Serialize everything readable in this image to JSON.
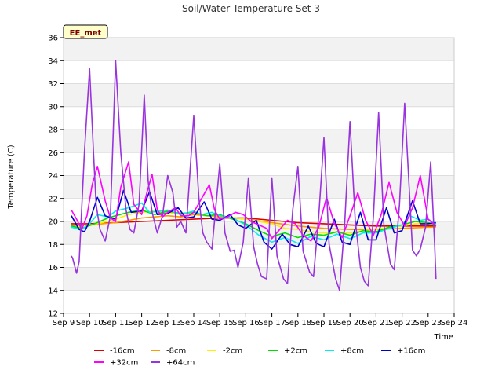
{
  "chart_data": {
    "type": "line",
    "title": "Soil/Water Temperature Set 3",
    "xlabel": "Time",
    "ylabel": "Temperature (C)",
    "badge": "EE_met",
    "x_ticks": [
      "Sep 9",
      "Sep 10",
      "Sep 11",
      "Sep 12",
      "Sep 13",
      "Sep 14",
      "Sep 15",
      "Sep 16",
      "Sep 17",
      "Sep 18",
      "Sep 19",
      "Sep 20",
      "Sep 21",
      "Sep 22",
      "Sep 23",
      "Sep 24"
    ],
    "xlim": [
      9,
      24
    ],
    "ylim": [
      12,
      36
    ],
    "y_ticks": [
      12,
      14,
      16,
      18,
      20,
      22,
      24,
      26,
      28,
      30,
      32,
      34,
      36
    ],
    "grid": "horizontal bands",
    "legend_position": "bottom",
    "series": [
      {
        "name": "-16cm",
        "color": "#dd0000",
        "x": [
          9.3,
          10.0,
          11.0,
          12.0,
          13.0,
          14.0,
          15.0,
          16.0,
          17.0,
          18.0,
          19.0,
          20.0,
          21.0,
          22.0,
          23.0,
          23.3
        ],
        "y": [
          19.8,
          19.8,
          19.9,
          20.0,
          20.1,
          20.2,
          20.3,
          20.3,
          20.1,
          19.9,
          19.8,
          19.7,
          19.6,
          19.6,
          19.6,
          19.6
        ]
      },
      {
        "name": "-8cm",
        "color": "#ff9900",
        "x": [
          9.3,
          10.0,
          11.0,
          12.0,
          12.5,
          13.0,
          13.5,
          14.0,
          14.5,
          15.0,
          15.5,
          16.0,
          17.0,
          18.0,
          19.0,
          20.0,
          21.0,
          22.0,
          23.0,
          23.3
        ],
        "y": [
          19.6,
          19.7,
          19.9,
          20.3,
          20.4,
          20.5,
          20.4,
          20.6,
          20.5,
          20.4,
          20.3,
          20.2,
          19.9,
          19.6,
          19.4,
          19.3,
          19.3,
          19.4,
          19.5,
          19.5
        ]
      },
      {
        "name": "-2cm",
        "color": "#ffee00",
        "x": [
          9.3,
          10.0,
          10.5,
          11.0,
          11.5,
          12.0,
          12.5,
          13.0,
          13.5,
          14.0,
          14.5,
          15.0,
          16.0,
          17.0,
          17.5,
          18.0,
          18.5,
          19.0,
          19.5,
          20.0,
          20.5,
          21.0,
          21.5,
          22.0,
          22.5,
          23.0,
          23.3
        ],
        "y": [
          19.5,
          19.7,
          19.9,
          20.2,
          20.6,
          20.8,
          20.9,
          20.8,
          20.6,
          20.8,
          20.5,
          20.5,
          20.2,
          19.8,
          19.4,
          19.3,
          19.1,
          19.0,
          19.1,
          19.0,
          19.2,
          19.3,
          19.5,
          19.6,
          19.8,
          19.9,
          19.8
        ]
      },
      {
        "name": "+2cm",
        "color": "#00dd00",
        "x": [
          9.3,
          9.7,
          10.2,
          10.7,
          11.0,
          11.5,
          12.0,
          12.5,
          13.0,
          13.5,
          14.0,
          14.5,
          15.0,
          15.5,
          16.0,
          16.5,
          17.0,
          17.5,
          18.0,
          18.5,
          19.0,
          19.5,
          20.0,
          20.5,
          21.0,
          21.5,
          22.0,
          22.5,
          23.0,
          23.3
        ],
        "y": [
          19.6,
          19.4,
          19.8,
          20.3,
          20.5,
          20.8,
          21.0,
          20.6,
          20.9,
          20.7,
          20.8,
          20.5,
          20.6,
          20.2,
          19.8,
          19.2,
          18.7,
          19.0,
          18.6,
          18.9,
          18.8,
          19.1,
          18.8,
          19.2,
          19.1,
          19.5,
          19.7,
          20.0,
          19.9,
          19.7
        ]
      },
      {
        "name": "+8cm",
        "color": "#00eeee",
        "x": [
          9.3,
          9.7,
          10.0,
          10.3,
          10.7,
          11.0,
          11.5,
          12.0,
          12.3,
          12.7,
          13.0,
          13.5,
          14.0,
          14.3,
          14.7,
          15.0,
          15.5,
          16.0,
          16.5,
          17.0,
          17.5,
          18.0,
          18.5,
          19.0,
          19.5,
          20.0,
          20.5,
          21.0,
          21.5,
          22.0,
          22.3,
          22.7,
          23.0,
          23.3
        ],
        "y": [
          19.5,
          19.3,
          19.8,
          20.6,
          20.4,
          20.9,
          21.2,
          21.6,
          20.8,
          20.9,
          21.0,
          20.6,
          20.9,
          20.6,
          20.8,
          20.5,
          20.3,
          19.7,
          18.8,
          18.2,
          18.6,
          18.1,
          18.7,
          18.4,
          18.9,
          18.5,
          19.0,
          19.0,
          19.4,
          19.7,
          20.5,
          20.1,
          20.2,
          19.8
        ]
      },
      {
        "name": "+16cm",
        "color": "#0000cc",
        "x": [
          9.3,
          9.6,
          9.8,
          10.0,
          10.3,
          10.6,
          11.0,
          11.3,
          11.6,
          12.0,
          12.3,
          12.6,
          13.0,
          13.4,
          13.7,
          14.0,
          14.4,
          14.7,
          15.0,
          15.4,
          15.7,
          16.0,
          16.4,
          16.7,
          17.0,
          17.4,
          17.7,
          18.0,
          18.4,
          18.7,
          19.0,
          19.4,
          19.7,
          20.0,
          20.4,
          20.7,
          21.0,
          21.4,
          21.7,
          22.0,
          22.4,
          22.7,
          23.0,
          23.3
        ],
        "y": [
          20.5,
          19.3,
          19.1,
          20.0,
          22.1,
          20.5,
          20.2,
          22.7,
          20.8,
          20.9,
          22.6,
          20.6,
          20.7,
          21.2,
          20.3,
          20.4,
          21.7,
          20.2,
          20.1,
          20.6,
          19.7,
          19.4,
          20.1,
          18.2,
          17.6,
          18.9,
          18.0,
          17.8,
          19.6,
          18.1,
          17.8,
          20.2,
          18.2,
          18.0,
          20.8,
          18.4,
          18.4,
          21.2,
          19.0,
          19.2,
          21.8,
          19.8,
          19.8,
          19.9
        ]
      },
      {
        "name": "+32cm",
        "color": "#ff00ff",
        "x": [
          9.3,
          9.5,
          9.7,
          9.9,
          10.1,
          10.3,
          10.6,
          10.8,
          11.0,
          11.2,
          11.5,
          11.7,
          12.0,
          12.2,
          12.4,
          12.6,
          12.8,
          13.0,
          13.3,
          13.5,
          13.8,
          14.0,
          14.3,
          14.6,
          14.8,
          15.0,
          15.3,
          15.6,
          15.9,
          16.2,
          16.5,
          16.8,
          17.0,
          17.3,
          17.6,
          17.9,
          18.2,
          18.5,
          18.8,
          19.1,
          19.4,
          19.7,
          20.0,
          20.3,
          20.6,
          20.9,
          21.2,
          21.5,
          21.8,
          22.1,
          22.4,
          22.7,
          23.0,
          23.3
        ],
        "y": [
          21.0,
          20.2,
          19.3,
          20.5,
          23.2,
          24.8,
          21.8,
          20.3,
          20.0,
          23.0,
          25.2,
          21.5,
          20.6,
          22.5,
          24.1,
          21.0,
          20.4,
          20.8,
          21.2,
          20.5,
          20.5,
          20.8,
          22.0,
          23.2,
          21.0,
          20.2,
          20.4,
          20.8,
          20.6,
          20.0,
          19.7,
          19.4,
          18.5,
          19.3,
          20.1,
          19.8,
          18.8,
          18.3,
          19.5,
          22.1,
          19.8,
          18.6,
          20.5,
          22.5,
          20.1,
          18.8,
          20.6,
          23.4,
          20.8,
          19.6,
          21.2,
          24.0,
          20.2,
          19.6
        ]
      },
      {
        "name": "+64cm",
        "color": "#9933dd",
        "x": [
          9.3,
          9.35,
          9.5,
          9.6,
          9.8,
          10.0,
          10.15,
          10.25,
          10.4,
          10.6,
          10.8,
          11.0,
          11.2,
          11.4,
          11.55,
          11.7,
          11.9,
          12.1,
          12.25,
          12.4,
          12.6,
          12.8,
          13.0,
          13.2,
          13.35,
          13.5,
          13.7,
          14.0,
          14.2,
          14.35,
          14.5,
          14.7,
          15.0,
          15.2,
          15.4,
          15.55,
          15.7,
          15.9,
          16.1,
          16.3,
          16.45,
          16.6,
          16.8,
          17.0,
          17.2,
          17.45,
          17.6,
          17.8,
          18.0,
          18.2,
          18.45,
          18.6,
          18.8,
          19.0,
          19.2,
          19.45,
          19.6,
          19.8,
          20.0,
          20.2,
          20.4,
          20.55,
          20.7,
          20.9,
          21.1,
          21.3,
          21.55,
          21.7,
          21.9,
          22.1,
          22.4,
          22.55,
          22.7,
          22.9,
          23.1,
          23.25,
          23.3
        ],
        "y": [
          17.0,
          16.8,
          15.5,
          16.5,
          26.0,
          33.3,
          26.0,
          21.5,
          19.3,
          18.3,
          20.5,
          34.0,
          26.0,
          21.0,
          19.3,
          19.0,
          21.5,
          31.0,
          23.5,
          20.8,
          19.0,
          20.5,
          24.0,
          22.5,
          19.5,
          20.0,
          19.0,
          29.2,
          22.0,
          19.0,
          18.2,
          17.6,
          25.0,
          19.0,
          17.4,
          17.5,
          16.0,
          18.2,
          23.8,
          17.8,
          16.3,
          15.2,
          15.0,
          23.8,
          17.0,
          15.0,
          14.6,
          21.0,
          24.8,
          17.4,
          15.6,
          15.2,
          20.5,
          27.3,
          18.0,
          15.0,
          14.0,
          20.0,
          28.7,
          20.2,
          16.0,
          14.8,
          14.4,
          20.5,
          29.5,
          19.7,
          16.3,
          15.8,
          21.5,
          30.3,
          17.5,
          17.0,
          17.6,
          19.5,
          25.2,
          18.0,
          15.0
        ]
      }
    ]
  }
}
